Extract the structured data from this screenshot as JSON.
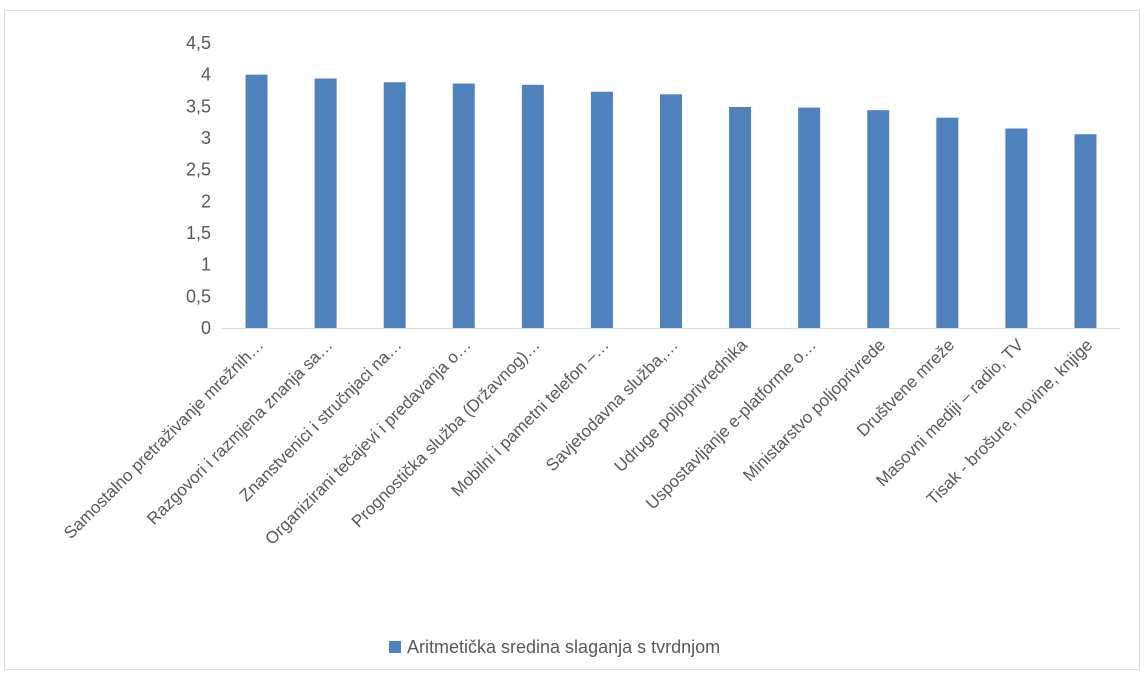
{
  "chart_data": {
    "type": "bar",
    "categories": [
      "Samostalno pretraživanje mrežnih…",
      "Razgovori i razmjena znanja sa…",
      "Znanstvenici i stručnjaci na…",
      "Organizirani tečajevi i predavanja o…",
      "Prognostička služba (Državnog)…",
      "Mobilni i pametni telefon –…",
      "Savjetodavna služba,…",
      "Udruge poljoprivrednika",
      "Uspostavljanje e-platforme o…",
      "Ministarstvo poljoprivrede",
      "Društvene mreže",
      "Masovni mediji – radio, TV",
      "Tisak - brošure, novine, knjige"
    ],
    "series": [
      {
        "name": "Aritmetička sredina slaganja s tvrdnjom",
        "values": [
          4.0,
          3.94,
          3.88,
          3.86,
          3.84,
          3.73,
          3.69,
          3.49,
          3.48,
          3.44,
          3.32,
          3.15,
          3.06
        ],
        "color": "#4f81bd"
      }
    ],
    "y_ticks": [
      "0",
      "0,5",
      "1",
      "1,5",
      "2",
      "2,5",
      "3",
      "3,5",
      "4",
      "4,5"
    ],
    "ylim": [
      0,
      4.5
    ],
    "grid": false,
    "legend_position": "bottom"
  },
  "legend": {
    "label": "Aritmetička sredina slaganja s tvrdnjom"
  }
}
